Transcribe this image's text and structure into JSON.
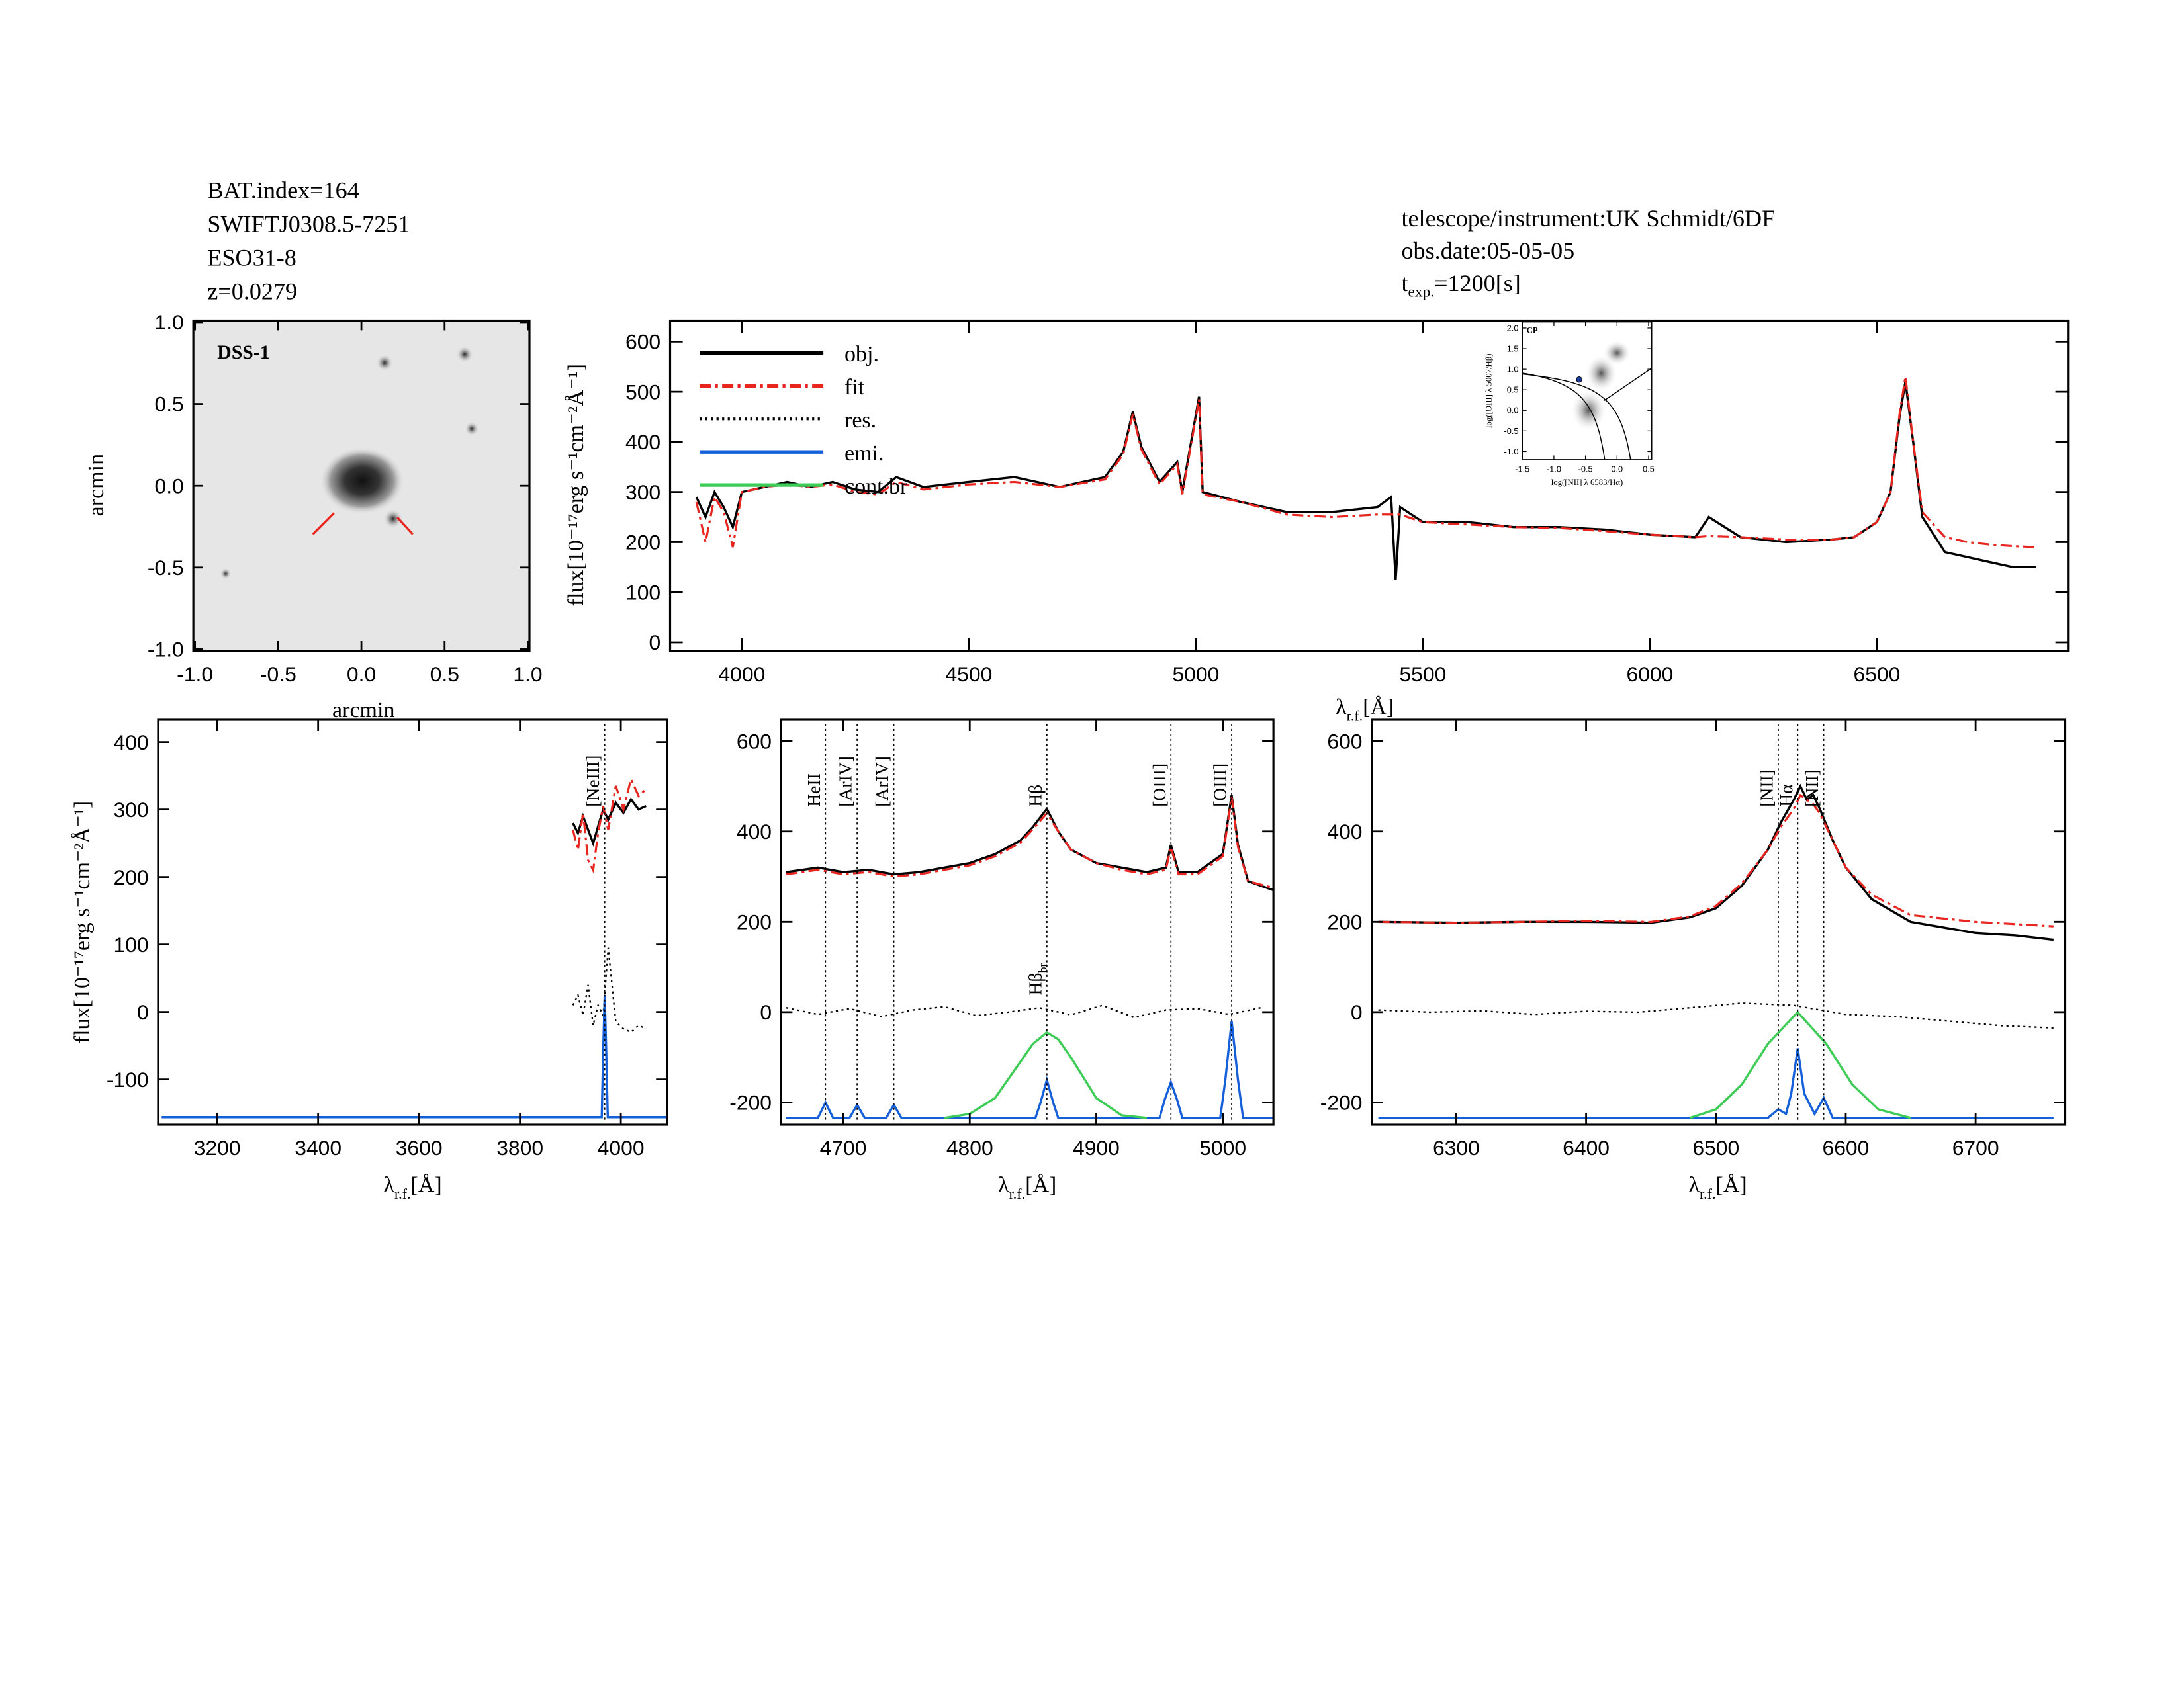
{
  "header": {
    "left": [
      "BAT.index=164",
      "SWIFTJ0308.5-7251",
      "ESO31-8",
      "z=0.0279"
    ],
    "right": [
      "telescope/instrument:UK Schmidt/6DF",
      "obs.date:05-05-05"
    ],
    "exposure": {
      "symbol": "t",
      "subscript": "exp.",
      "text": "=1200[s]"
    }
  },
  "chart_data": [
    {
      "type": "image",
      "label": "DSS-1",
      "x_label": "arcmin",
      "y_label": "arcmin",
      "xlim": [
        -1.01,
        1.01
      ],
      "ylim": [
        -1.01,
        1.01
      ],
      "xticks": [
        {
          "value": -1,
          "label": "-1.0"
        },
        -0.5,
        {
          "value": 0,
          "label": "0.0"
        },
        0.5,
        {
          "value": 1,
          "label": "1.0"
        }
      ],
      "yticks": [
        {
          "value": -1,
          "label": "-1.0"
        },
        -0.5,
        {
          "value": 0,
          "label": "0.0"
        },
        0.5,
        {
          "value": 1,
          "label": "1.0"
        }
      ]
    },
    {
      "type": "line",
      "y_label": "flux[10⁻¹⁷erg s⁻¹cm⁻²Å⁻¹]",
      "x_label": {
        "symbol": "λ",
        "subscript": "r.f.",
        "text": "[Å]"
      },
      "xlim": [
        3842,
        6921
      ],
      "ylim": [
        -17,
        642
      ],
      "xticks": [
        4000,
        4500,
        5000,
        5500,
        6000,
        6500
      ],
      "yticks": [
        0,
        100,
        200,
        300,
        400,
        500,
        600
      ],
      "legend": true,
      "series": [
        {
          "name": "obj.",
          "color": "#000000",
          "style": "solid",
          "x": [
            3900,
            3920,
            3940,
            3960,
            3980,
            4000,
            4050,
            4100,
            4150,
            4200,
            4250,
            4300,
            4340,
            4400,
            4500,
            4600,
            4700,
            4800,
            4840,
            4861,
            4880,
            4920,
            4959,
            4970,
            5007,
            5015,
            5100,
            5200,
            5300,
            5400,
            5430,
            5440,
            5450,
            5500,
            5600,
            5700,
            5800,
            5900,
            6000,
            6100,
            6130,
            6200,
            6300,
            6400,
            6450,
            6500,
            6530,
            6550,
            6563,
            6580,
            6600,
            6650,
            6700,
            6750,
            6800,
            6850
          ],
          "values": [
            290,
            250,
            300,
            270,
            230,
            300,
            310,
            320,
            310,
            320,
            305,
            300,
            330,
            310,
            320,
            330,
            310,
            330,
            380,
            460,
            390,
            320,
            360,
            300,
            490,
            300,
            280,
            260,
            260,
            270,
            290,
            125,
            270,
            240,
            240,
            230,
            230,
            225,
            215,
            210,
            250,
            210,
            200,
            205,
            210,
            240,
            300,
            450,
            520,
            400,
            250,
            180,
            170,
            160,
            150,
            150
          ]
        },
        {
          "name": "fit",
          "color": "#e8251f",
          "style": "dash-dot",
          "x": [
            3900,
            3920,
            3940,
            3960,
            3980,
            4000,
            4050,
            4100,
            4150,
            4200,
            4250,
            4300,
            4340,
            4400,
            4500,
            4600,
            4700,
            4800,
            4840,
            4861,
            4880,
            4920,
            4959,
            4970,
            5007,
            5015,
            5100,
            5200,
            5300,
            5400,
            5430,
            5440,
            5450,
            5500,
            5600,
            5700,
            5800,
            5900,
            6000,
            6100,
            6130,
            6200,
            6300,
            6400,
            6450,
            6500,
            6530,
            6550,
            6563,
            6580,
            6600,
            6650,
            6700,
            6750,
            6800,
            6850
          ],
          "values": [
            280,
            200,
            290,
            260,
            190,
            300,
            310,
            315,
            310,
            315,
            300,
            295,
            320,
            305,
            315,
            320,
            310,
            325,
            375,
            455,
            385,
            315,
            355,
            295,
            485,
            295,
            280,
            255,
            250,
            255,
            255,
            255,
            255,
            240,
            235,
            230,
            228,
            222,
            215,
            210,
            212,
            210,
            205,
            205,
            210,
            240,
            300,
            455,
            530,
            400,
            260,
            210,
            200,
            195,
            192,
            190
          ]
        },
        {
          "name": "res.",
          "color": "#000000",
          "style": "dotted"
        },
        {
          "name": "emi.",
          "color": "#1560d8",
          "style": "solid"
        },
        {
          "name": "cont.br",
          "color": "#3dcc55",
          "style": "solid"
        }
      ]
    },
    {
      "type": "scatter",
      "label": "CP",
      "x_label": "log([NII] λ 6583/Hα)",
      "y_label": "log([OIII] λ 5007/Hβ)",
      "xlim": [
        -1.5,
        0.55
      ],
      "ylim": [
        -1.2,
        2.15
      ],
      "xticks": [
        -1.5,
        {
          "value": -1,
          "label": "-1.0"
        },
        -0.5,
        {
          "value": 0,
          "label": "0.0"
        },
        0.5
      ],
      "yticks": [
        {
          "value": -1,
          "label": "-1.0"
        },
        -0.5,
        {
          "value": 0,
          "label": "0.0"
        },
        0.5,
        {
          "value": 1,
          "label": "1.0"
        },
        1.5,
        {
          "value": 2,
          "label": "2.0"
        }
      ],
      "x": [
        -0.6
      ],
      "y": [
        0.75
      ],
      "color": "#1a3a9a"
    },
    {
      "type": "line",
      "y_label": "flux[10⁻¹⁷erg s⁻¹cm⁻²Å⁻¹]",
      "x_label": {
        "symbol": "λ",
        "subscript": "r.f.",
        "text": "[Å]"
      },
      "xlim": [
        3083,
        4092
      ],
      "ylim": [
        -167,
        433
      ],
      "xticks": [
        3200,
        3400,
        3600,
        3800,
        4000
      ],
      "yticks": [
        -100,
        0,
        100,
        200,
        300,
        400
      ],
      "series": [
        {
          "color": "#000000",
          "style": "solid",
          "x": [
            3905,
            3915,
            3925,
            3935,
            3945,
            3955,
            3965,
            3975,
            3990,
            4005,
            4020,
            4035,
            4050
          ],
          "values": [
            280,
            265,
            290,
            270,
            250,
            275,
            300,
            285,
            310,
            295,
            315,
            300,
            305
          ]
        },
        {
          "color": "#e8251f",
          "style": "dash-dot",
          "x": [
            3905,
            3915,
            3925,
            3935,
            3945,
            3955,
            3965,
            3975,
            3990,
            4005,
            4020,
            4035,
            4050
          ],
          "values": [
            270,
            240,
            295,
            225,
            210,
            265,
            305,
            270,
            335,
            300,
            345,
            320,
            330
          ]
        },
        {
          "color": "#000000",
          "style": "dotted",
          "x": [
            3905,
            3915,
            3925,
            3935,
            3945,
            3955,
            3965,
            3975,
            3990,
            4005,
            4020,
            4035,
            4050
          ],
          "values": [
            10,
            25,
            -5,
            40,
            -20,
            10,
            -5,
            95,
            -15,
            -25,
            -30,
            -20,
            -25
          ]
        },
        {
          "color": "#1560d8",
          "style": "solid",
          "x": [
            3090,
            3962,
            3965,
            3968,
            3971,
            3974,
            4090
          ],
          "values": [
            -156,
            -156,
            -60,
            25,
            -60,
            -156,
            -156
          ]
        }
      ],
      "annotations": [
        {
          "text": "[NeIII]",
          "x": 3968
        }
      ]
    },
    {
      "type": "line",
      "x_label": {
        "symbol": "λ",
        "subscript": "r.f.",
        "text": "[Å]"
      },
      "xlim": [
        4651,
        5040
      ],
      "ylim": [
        -249,
        647
      ],
      "xticks": [
        4700,
        4800,
        4900,
        5000
      ],
      "yticks": [
        -200,
        0,
        200,
        400,
        600
      ],
      "series": [
        {
          "color": "#000000",
          "style": "solid",
          "x": [
            4655,
            4680,
            4700,
            4720,
            4740,
            4760,
            4780,
            4800,
            4820,
            4840,
            4850,
            4861,
            4870,
            4880,
            4900,
            4920,
            4940,
            4955,
            4959,
            4965,
            4980,
            5000,
            5007,
            5012,
            5020,
            5040
          ],
          "values": [
            310,
            320,
            310,
            315,
            305,
            310,
            320,
            330,
            350,
            380,
            410,
            450,
            400,
            360,
            330,
            320,
            310,
            320,
            370,
            310,
            310,
            350,
            480,
            370,
            290,
            270
          ]
        },
        {
          "color": "#e8251f",
          "style": "dash-dot",
          "x": [
            4655,
            4680,
            4700,
            4720,
            4740,
            4760,
            4780,
            4800,
            4820,
            4840,
            4850,
            4861,
            4870,
            4880,
            4900,
            4920,
            4940,
            4955,
            4959,
            4965,
            4980,
            5000,
            5007,
            5012,
            5020,
            5040
          ],
          "values": [
            305,
            315,
            305,
            310,
            300,
            305,
            315,
            325,
            345,
            375,
            405,
            440,
            400,
            360,
            330,
            315,
            305,
            315,
            365,
            305,
            305,
            345,
            475,
            365,
            290,
            275
          ]
        },
        {
          "color": "#000000",
          "style": "dotted",
          "x": [
            4655,
            4680,
            4705,
            4730,
            4755,
            4780,
            4805,
            4830,
            4855,
            4880,
            4905,
            4930,
            4955,
            4980,
            5005,
            5030
          ],
          "values": [
            10,
            -5,
            8,
            -10,
            5,
            12,
            -8,
            0,
            10,
            -6,
            15,
            -12,
            5,
            8,
            -5,
            10
          ]
        },
        {
          "color": "#1560d8",
          "style": "solid",
          "x": [
            4655,
            4680,
            4686,
            4692,
            4705,
            4711,
            4717,
            4734,
            4740,
            4746,
            4852,
            4856,
            4861,
            4866,
            4870,
            4950,
            4954,
            4959,
            4964,
            4968,
            4998,
            5002,
            5007,
            5012,
            5016,
            5040
          ],
          "values": [
            -234,
            -234,
            -200,
            -234,
            -234,
            -205,
            -234,
            -234,
            -205,
            -234,
            -234,
            -200,
            -150,
            -200,
            -234,
            -234,
            -195,
            -155,
            -195,
            -234,
            -234,
            -150,
            -20,
            -150,
            -234,
            -234
          ]
        },
        {
          "color": "#3dcc55",
          "style": "solid",
          "x": [
            4780,
            4800,
            4820,
            4840,
            4850,
            4861,
            4870,
            4880,
            4900,
            4920,
            4940
          ],
          "values": [
            -234,
            -225,
            -190,
            -110,
            -70,
            -45,
            -60,
            -100,
            -190,
            -228,
            -234
          ]
        }
      ],
      "annotations": [
        {
          "text": "HeII",
          "x": 4686
        },
        {
          "text": "[ArIV]",
          "x": 4711
        },
        {
          "text": "[ArIV]",
          "x": 4740
        },
        {
          "text": "Hβ",
          "x": 4861
        },
        {
          "text": "[OIII]",
          "x": 4959
        },
        {
          "text": "[OIII]",
          "x": 5007
        },
        {
          "text": "Hβ",
          "subscript": "br",
          "x": 4861,
          "placement": "bottom"
        }
      ]
    },
    {
      "type": "line",
      "x_label": {
        "symbol": "λ",
        "subscript": "r.f.",
        "text": "[Å]"
      },
      "xlim": [
        6235,
        6769
      ],
      "ylim": [
        -249,
        647
      ],
      "xticks": [
        6300,
        6400,
        6500,
        6600,
        6700
      ],
      "yticks": [
        -200,
        0,
        200,
        400,
        600
      ],
      "series": [
        {
          "color": "#000000",
          "style": "solid",
          "x": [
            6240,
            6300,
            6350,
            6400,
            6450,
            6480,
            6500,
            6520,
            6540,
            6550,
            6560,
            6565,
            6570,
            6575,
            6580,
            6590,
            6600,
            6620,
            6650,
            6700,
            6730,
            6760
          ],
          "values": [
            200,
            198,
            200,
            200,
            198,
            210,
            230,
            280,
            360,
            420,
            470,
            500,
            470,
            480,
            450,
            380,
            320,
            250,
            200,
            175,
            170,
            160
          ]
        },
        {
          "color": "#e8251f",
          "style": "dash-dot",
          "x": [
            6240,
            6300,
            6350,
            6400,
            6450,
            6480,
            6500,
            6520,
            6540,
            6550,
            6560,
            6565,
            6570,
            6575,
            6580,
            6590,
            6600,
            6620,
            6650,
            6700,
            6730,
            6760
          ],
          "values": [
            200,
            198,
            200,
            202,
            200,
            212,
            235,
            285,
            360,
            410,
            450,
            480,
            470,
            460,
            440,
            380,
            320,
            260,
            215,
            200,
            195,
            190
          ]
        },
        {
          "color": "#000000",
          "style": "dotted",
          "x": [
            6240,
            6280,
            6320,
            6360,
            6400,
            6440,
            6480,
            6520,
            6560,
            6600,
            6640,
            6680,
            6720,
            6760
          ],
          "values": [
            5,
            0,
            3,
            -5,
            2,
            0,
            10,
            20,
            15,
            -5,
            -10,
            -20,
            -30,
            -35
          ]
        },
        {
          "color": "#1560d8",
          "style": "solid",
          "x": [
            6240,
            6540,
            6548,
            6554,
            6558,
            6563,
            6568,
            6576,
            6583,
            6590,
            6760
          ],
          "values": [
            -234,
            -234,
            -215,
            -225,
            -180,
            -80,
            -180,
            -225,
            -190,
            -234,
            -234
          ]
        },
        {
          "color": "#3dcc55",
          "style": "solid",
          "x": [
            6480,
            6500,
            6520,
            6540,
            6563,
            6585,
            6605,
            6625,
            6650
          ],
          "values": [
            -234,
            -215,
            -160,
            -70,
            0,
            -70,
            -160,
            -215,
            -234
          ]
        }
      ],
      "annotations": [
        {
          "text": "[NII]",
          "x": 6548
        },
        {
          "text": "Hα",
          "x": 6563
        },
        {
          "text": "[NII]",
          "x": 6583
        }
      ]
    }
  ]
}
